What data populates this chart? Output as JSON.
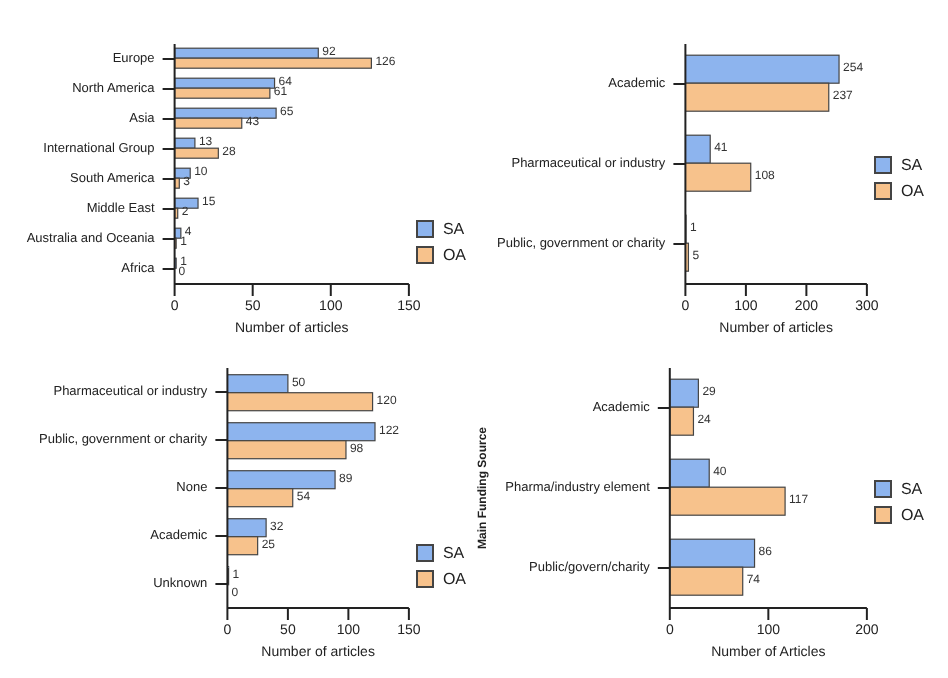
{
  "chart_data": [
    {
      "type": "bar",
      "orientation": "horizontal",
      "categories": [
        "Europe",
        "North America",
        "Asia",
        "International Group",
        "South America",
        "Middle East",
        "Australia and Oceania",
        "Africa"
      ],
      "series": [
        {
          "name": "SA",
          "color": "#8db4ee",
          "values": [
            92,
            64,
            65,
            13,
            10,
            15,
            4,
            1
          ]
        },
        {
          "name": "OA",
          "color": "#f7c28c",
          "values": [
            126,
            61,
            43,
            28,
            3,
            2,
            1,
            0
          ]
        }
      ],
      "xlim": [
        0,
        150
      ],
      "xticks": [
        0,
        50,
        100,
        150
      ],
      "xlabel": "Number of articles",
      "data_labels": true,
      "legend": "bottom right"
    },
    {
      "type": "bar",
      "orientation": "horizontal",
      "categories": [
        "Academic",
        "Pharmaceutical or industry",
        "Public, government or charity"
      ],
      "series": [
        {
          "name": "SA",
          "color": "#8db4ee",
          "values": [
            254,
            41,
            1
          ]
        },
        {
          "name": "OA",
          "color": "#f7c28c",
          "values": [
            237,
            108,
            5
          ]
        }
      ],
      "xlim": [
        0,
        300
      ],
      "xticks": [
        0,
        100,
        200,
        300
      ],
      "xlabel": "Number of articles",
      "data_labels": true,
      "legend": "right"
    },
    {
      "type": "bar",
      "orientation": "horizontal",
      "categories": [
        "Pharmaceutical or industry",
        "Public, government or charity",
        "None",
        "Academic",
        "Unknown"
      ],
      "series": [
        {
          "name": "SA",
          "color": "#8db4ee",
          "values": [
            50,
            122,
            89,
            32,
            1
          ]
        },
        {
          "name": "OA",
          "color": "#f7c28c",
          "values": [
            120,
            98,
            54,
            25,
            0
          ]
        }
      ],
      "xlim": [
        0,
        150
      ],
      "xticks": [
        0,
        50,
        100,
        150
      ],
      "xlabel": "Number of articles",
      "data_labels": true,
      "legend": "bottom right"
    },
    {
      "type": "bar",
      "orientation": "horizontal",
      "categories": [
        "Academic",
        "Pharma/industry element",
        "Public/govern/charity"
      ],
      "series": [
        {
          "name": "SA",
          "color": "#8db4ee",
          "values": [
            29,
            40,
            86
          ]
        },
        {
          "name": "OA",
          "color": "#f7c28c",
          "values": [
            24,
            117,
            74
          ]
        }
      ],
      "xlim": [
        0,
        200
      ],
      "xticks": [
        0,
        100,
        200
      ],
      "xlabel": "Number of Articles",
      "ylabel": "Main Funding Source",
      "data_labels": true,
      "legend": "right"
    }
  ]
}
